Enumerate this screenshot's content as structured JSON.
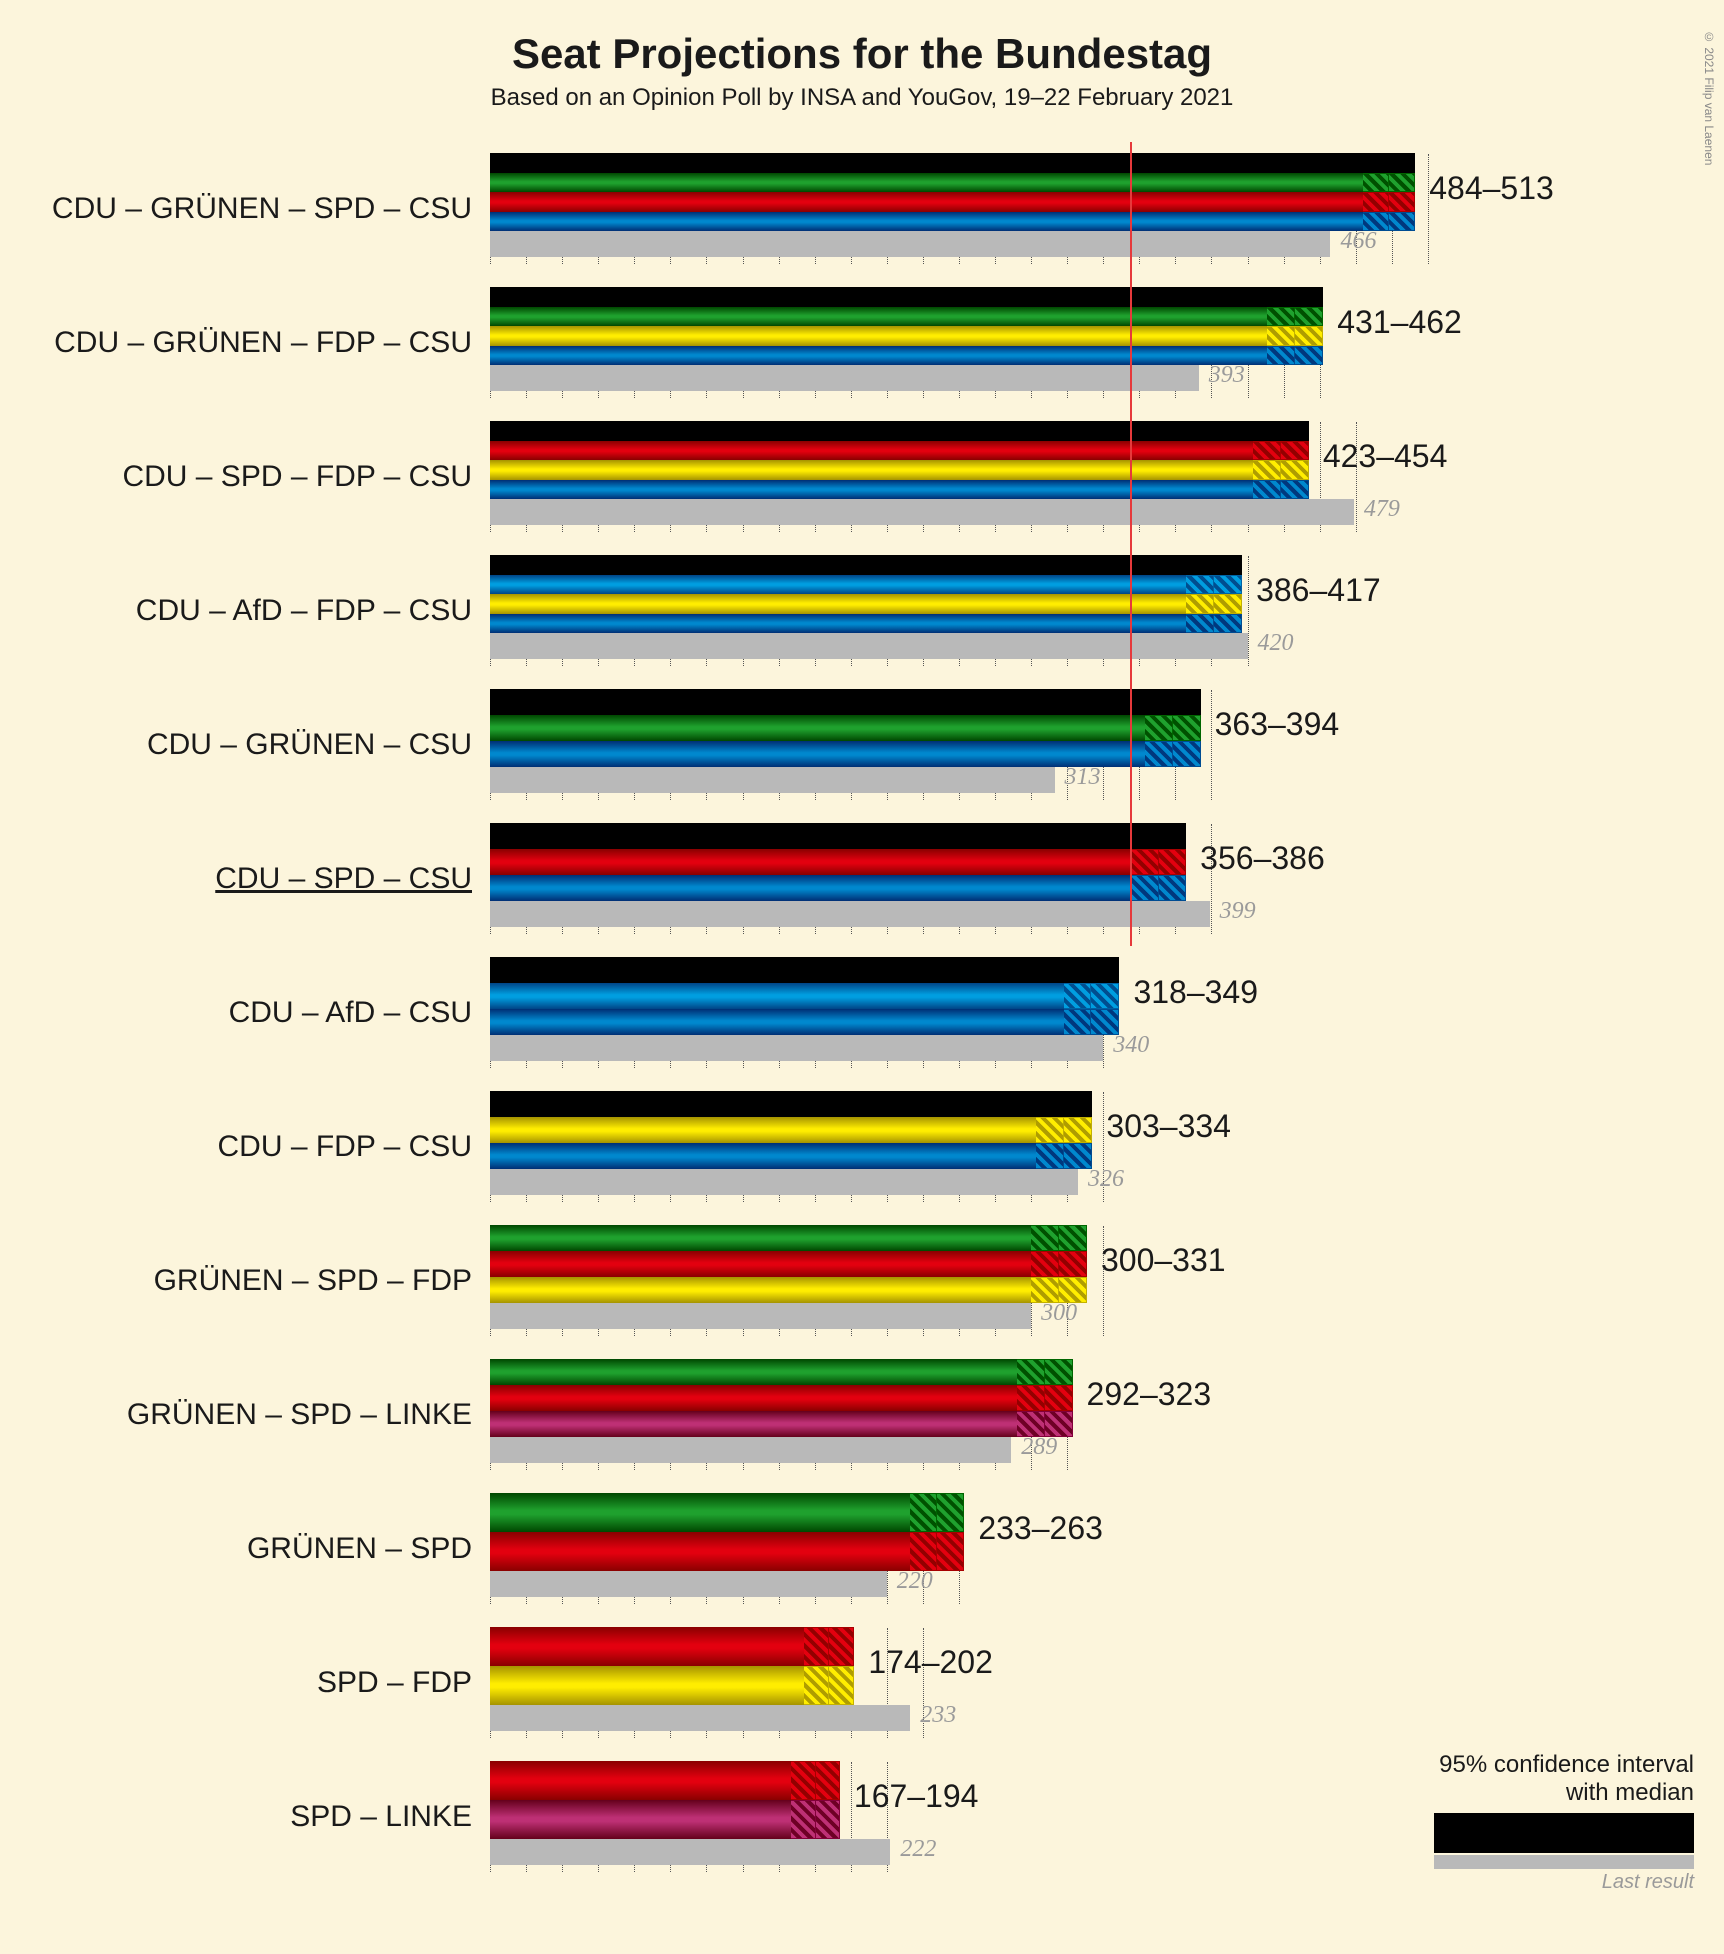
{
  "title": "Seat Projections for the Bundestag",
  "subtitle": "Based on an Opinion Poll by INSA and YouGov, 19–22 February 2021",
  "copyright": "© 2021 Filip van Laenen",
  "x_max": 560,
  "grid_step": 20,
  "majority_at": 355,
  "party_colors": {
    "CDU": "#000000",
    "GRÜNEN": "#1fa12e",
    "SPD": "#e3000f",
    "CSU": "#0088ce",
    "FDP": "#ffed00",
    "AfD": "#009ee0",
    "LINKE": "#be3075"
  },
  "legend": {
    "line1": "95% confidence interval",
    "line2": "with median",
    "last_label": "Last result"
  },
  "coalitions": [
    {
      "label": "CDU – GRÜNEN – SPD – CSU",
      "parties": [
        "CDU",
        "GRÜNEN",
        "SPD",
        "CSU"
      ],
      "low": 484,
      "high": 513,
      "last": 466,
      "underline": false
    },
    {
      "label": "CDU – GRÜNEN – FDP – CSU",
      "parties": [
        "CDU",
        "GRÜNEN",
        "FDP",
        "CSU"
      ],
      "low": 431,
      "high": 462,
      "last": 393,
      "underline": false
    },
    {
      "label": "CDU – SPD – FDP – CSU",
      "parties": [
        "CDU",
        "SPD",
        "FDP",
        "CSU"
      ],
      "low": 423,
      "high": 454,
      "last": 479,
      "underline": false
    },
    {
      "label": "CDU – AfD – FDP – CSU",
      "parties": [
        "CDU",
        "AfD",
        "FDP",
        "CSU"
      ],
      "low": 386,
      "high": 417,
      "last": 420,
      "underline": false
    },
    {
      "label": "CDU – GRÜNEN – CSU",
      "parties": [
        "CDU",
        "GRÜNEN",
        "CSU"
      ],
      "low": 363,
      "high": 394,
      "last": 313,
      "underline": false
    },
    {
      "label": "CDU – SPD – CSU",
      "parties": [
        "CDU",
        "SPD",
        "CSU"
      ],
      "low": 356,
      "high": 386,
      "last": 399,
      "underline": true
    },
    {
      "label": "CDU – AfD – CSU",
      "parties": [
        "CDU",
        "AfD",
        "CSU"
      ],
      "low": 318,
      "high": 349,
      "last": 340,
      "underline": false
    },
    {
      "label": "CDU – FDP – CSU",
      "parties": [
        "CDU",
        "FDP",
        "CSU"
      ],
      "low": 303,
      "high": 334,
      "last": 326,
      "underline": false
    },
    {
      "label": "GRÜNEN – SPD – FDP",
      "parties": [
        "GRÜNEN",
        "SPD",
        "FDP"
      ],
      "low": 300,
      "high": 331,
      "last": 300,
      "underline": false
    },
    {
      "label": "GRÜNEN – SPD – LINKE",
      "parties": [
        "GRÜNEN",
        "SPD",
        "LINKE"
      ],
      "low": 292,
      "high": 323,
      "last": 289,
      "underline": false
    },
    {
      "label": "GRÜNEN – SPD",
      "parties": [
        "GRÜNEN",
        "SPD"
      ],
      "low": 233,
      "high": 263,
      "last": 220,
      "underline": false
    },
    {
      "label": "SPD – FDP",
      "parties": [
        "SPD",
        "FDP"
      ],
      "low": 174,
      "high": 202,
      "last": 233,
      "underline": false
    },
    {
      "label": "SPD – LINKE",
      "parties": [
        "SPD",
        "LINKE"
      ],
      "low": 167,
      "high": 194,
      "last": 222,
      "underline": false
    }
  ]
}
